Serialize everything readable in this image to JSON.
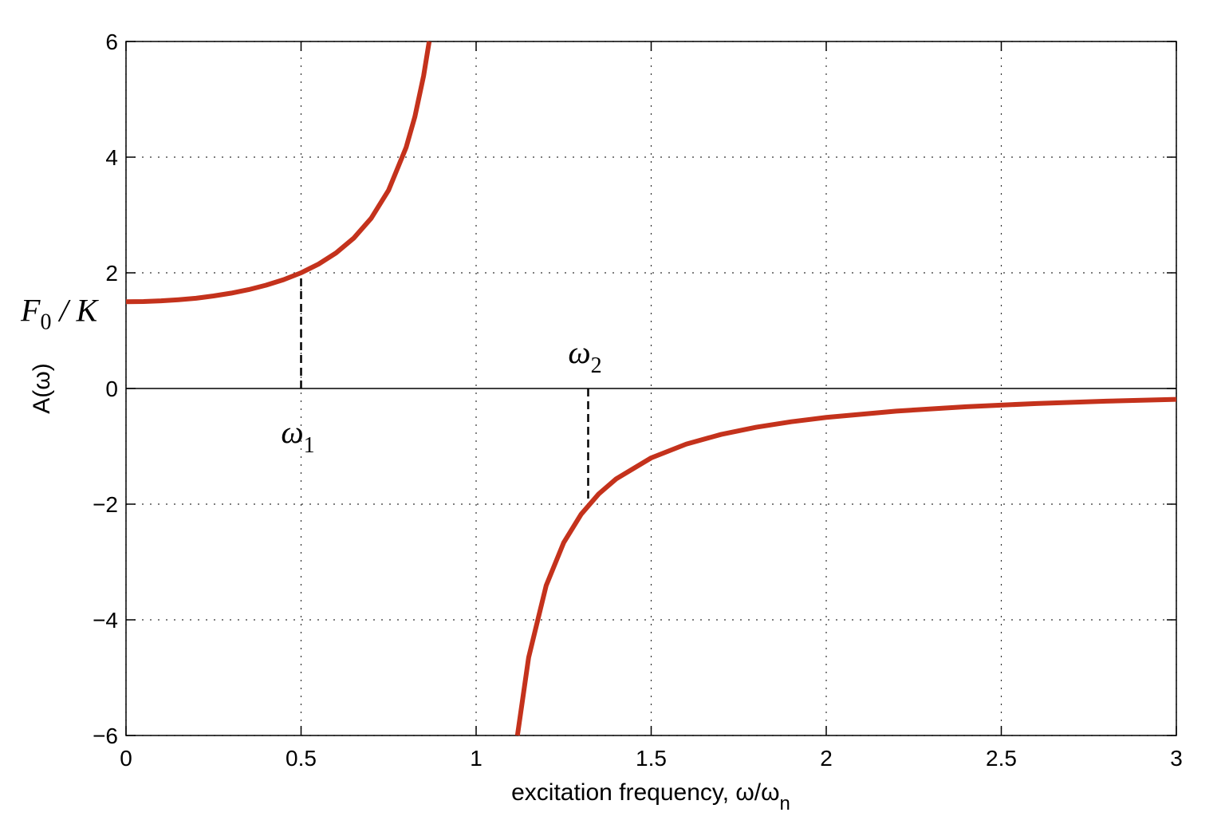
{
  "chart_data": {
    "type": "line",
    "xlabel": {
      "text": "excitation frequency, ω/ω",
      "sub": "n"
    },
    "ylabel": "A(ω)",
    "x": [
      0,
      0.05,
      0.1,
      0.15,
      0.2,
      0.25,
      0.3,
      0.35,
      0.4,
      0.45,
      0.5,
      0.55,
      0.6,
      0.65,
      0.7,
      0.75,
      0.8,
      0.825,
      0.85,
      0.866,
      1,
      1.118,
      1.15,
      1.2,
      1.25,
      1.3,
      1.35,
      1.4,
      1.5,
      1.6,
      1.7,
      1.8,
      1.9,
      2.0,
      2.2,
      2.4,
      2.6,
      2.8,
      3.0
    ],
    "series": [
      {
        "color": "#c4321c",
        "values": [
          1.5,
          1.504,
          1.515,
          1.535,
          1.56,
          1.6,
          1.648,
          1.709,
          1.786,
          1.881,
          2,
          2.151,
          2.344,
          2.597,
          2.941,
          3.429,
          4.167,
          4.697,
          5.405,
          6,
          null,
          -6,
          -4.651,
          -3.409,
          -2.667,
          -2.174,
          -1.824,
          -1.563,
          -1.2,
          -0.962,
          -0.794,
          -0.67,
          -0.575,
          -0.5,
          -0.391,
          -0.315,
          -0.26,
          -0.219,
          -0.188
        ]
      }
    ],
    "xlim": [
      0,
      3
    ],
    "ylim": [
      -6,
      6
    ],
    "xticks": [
      0,
      0.5,
      1,
      1.5,
      2,
      2.5,
      3
    ],
    "yticks": [
      {
        "value": -6,
        "label": "−6"
      },
      {
        "value": -4,
        "label": "−4"
      },
      {
        "value": -2,
        "label": "−2"
      },
      0,
      2,
      4,
      6
    ],
    "grid": true,
    "markers": [
      {
        "label": "ω",
        "sub": "1",
        "x": 0.5,
        "y": 2
      },
      {
        "label": "ω",
        "sub": "2",
        "x": 1.32,
        "y": -2.02
      }
    ],
    "annotations": [
      {
        "text": "F",
        "sub": "0",
        "rest": " / K",
        "y": 1.5
      }
    ]
  }
}
